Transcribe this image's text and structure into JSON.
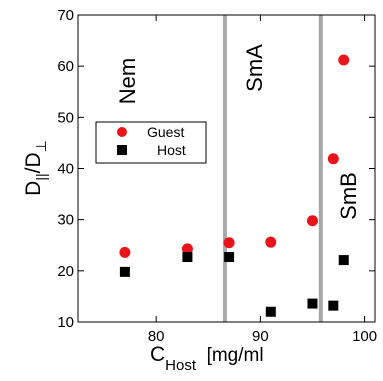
{
  "chart_data": {
    "type": "scatter",
    "title": "",
    "xlim": [
      72.5,
      101
    ],
    "ylim": [
      10,
      70
    ],
    "x_ticks": [
      80,
      90,
      100
    ],
    "y_ticks": [
      10,
      20,
      30,
      40,
      50,
      60,
      70
    ],
    "grid": false,
    "xlabel": {
      "main": "C",
      "sub": "Host",
      "unit": "  [mg/ml"
    },
    "ylabel": {
      "d1": "D",
      "sub1": "||",
      "sep": "/D",
      "sub2": "⊥"
    },
    "legend": {
      "placement": "upper-left",
      "entries": [
        "Guest",
        "Host"
      ]
    },
    "series": [
      {
        "name": "Guest",
        "marker": "circle",
        "color": "#e8141a",
        "x": [
          77,
          83,
          87,
          91,
          95,
          97,
          98
        ],
        "y": [
          23.6,
          24.3,
          25.5,
          25.6,
          29.8,
          41.9,
          61.2
        ]
      },
      {
        "name": "Host",
        "marker": "square",
        "color": "#000000",
        "x": [
          77,
          83,
          87,
          91,
          95,
          97,
          98
        ],
        "y": [
          19.8,
          22.7,
          22.7,
          12.0,
          13.6,
          13.2,
          22.1
        ]
      }
    ],
    "phase_boundaries": {
      "x": [
        86.6,
        95.8
      ],
      "color": "#a8a8a8"
    },
    "region_labels": [
      "Nem",
      "SmA",
      "SmB"
    ]
  }
}
